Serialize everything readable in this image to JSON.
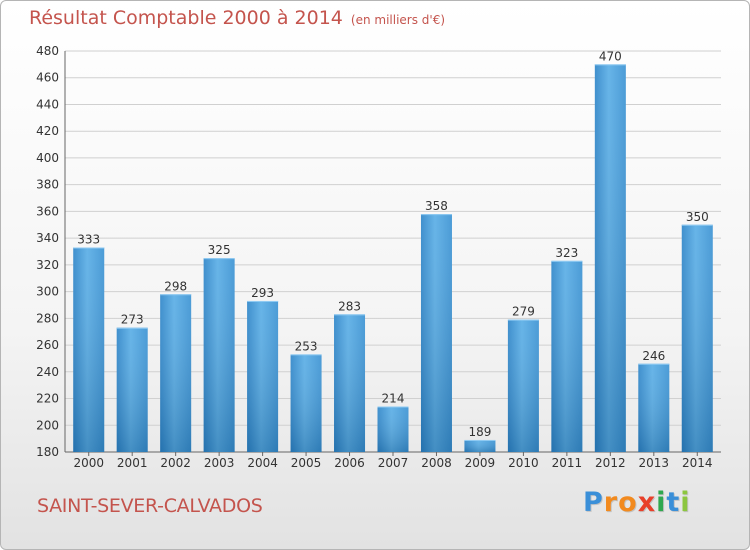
{
  "title": "Résultat Comptable 2000 à 2014",
  "unit": "(en milliers d'€)",
  "location": "SAINT-SEVER-CALVADOS",
  "logo": {
    "letters": [
      "P",
      "r",
      "o",
      "x",
      "i",
      "t",
      "i"
    ],
    "colors": [
      "#3a8fd8",
      "#f28a1e",
      "#f28a1e",
      "#e8402a",
      "#2fa84f",
      "#3a8fd8",
      "#8cc63f"
    ]
  },
  "colors": {
    "bar": "#4a9fdf",
    "title": "#c4544d"
  },
  "chart_data": {
    "type": "bar",
    "title": "Résultat Comptable 2000 à 2014",
    "ylabel": "en milliers d'€",
    "categories": [
      "2000",
      "2001",
      "2002",
      "2003",
      "2004",
      "2005",
      "2006",
      "2007",
      "2008",
      "2009",
      "2010",
      "2011",
      "2012",
      "2013",
      "2014"
    ],
    "values": [
      333,
      273,
      298,
      325,
      293,
      253,
      283,
      214,
      358,
      189,
      279,
      323,
      470,
      246,
      350
    ],
    "ylim": [
      180,
      480
    ],
    "yticks": [
      180,
      200,
      220,
      240,
      260,
      280,
      300,
      320,
      340,
      360,
      380,
      400,
      420,
      440,
      460,
      480
    ],
    "grid": true
  }
}
